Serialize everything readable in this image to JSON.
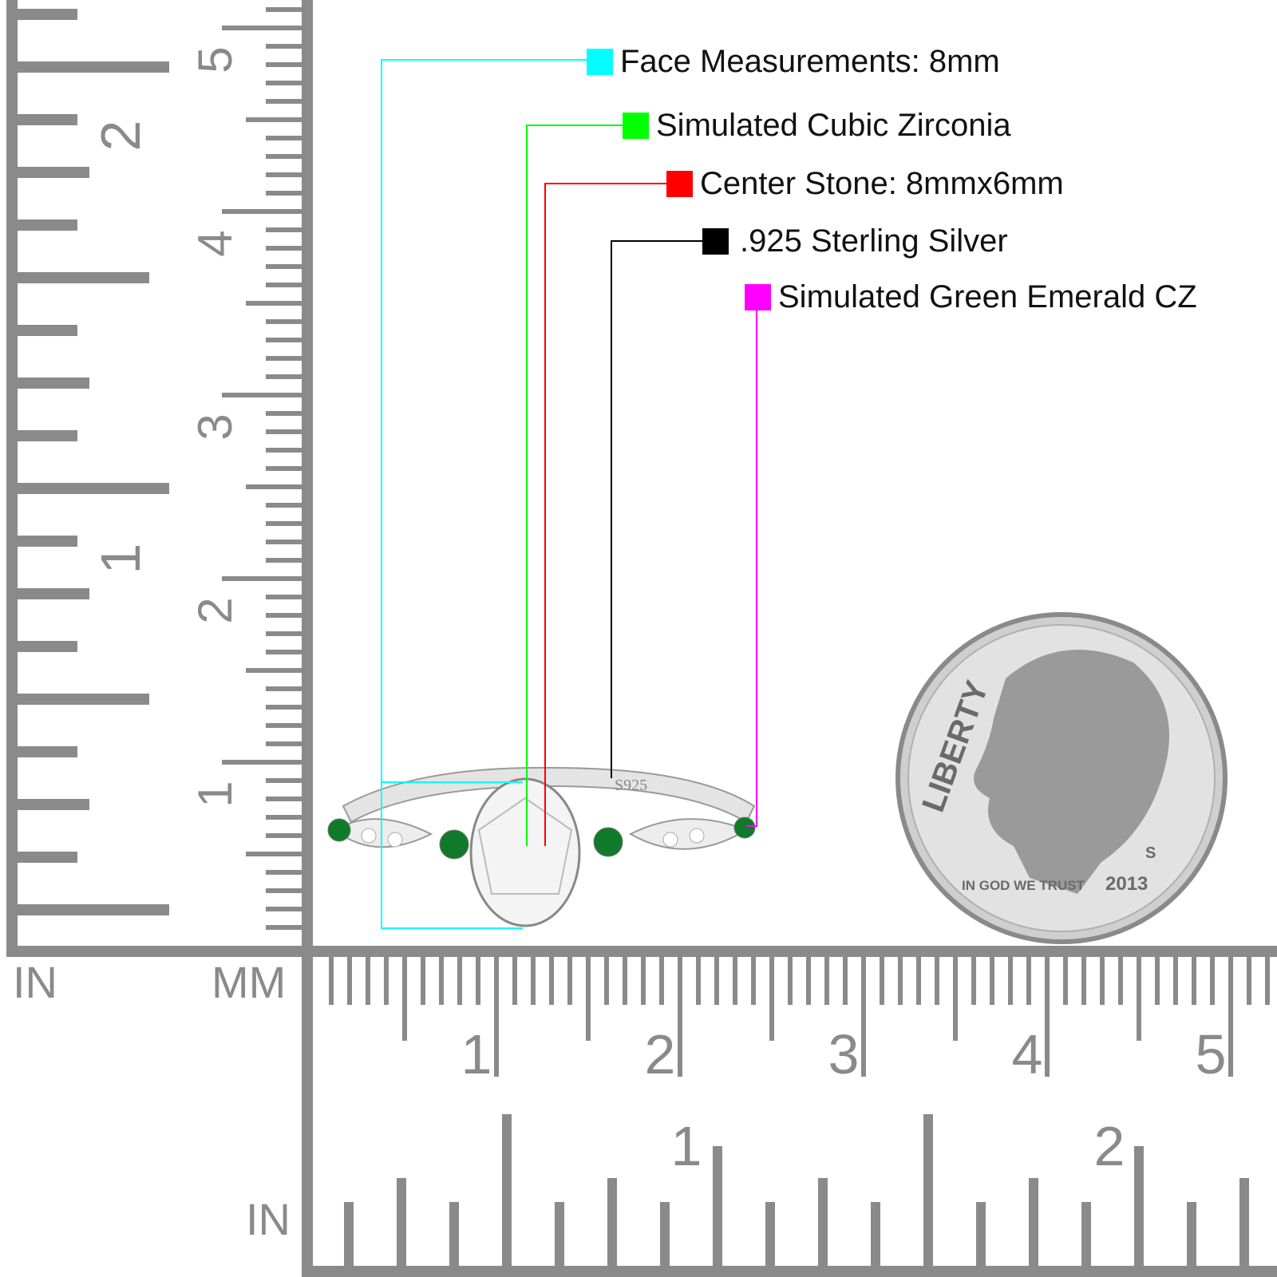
{
  "legend": [
    {
      "label": "Face Measurements: 8mm",
      "color": "#00ffff"
    },
    {
      "label": "Simulated Cubic Zirconia",
      "color": "#00ff00"
    },
    {
      "label": "Center Stone: 8mmx6mm",
      "color": "#ff0000"
    },
    {
      "label": ".925 Sterling Silver",
      "color": "#000000"
    },
    {
      "label": "Simulated Green Emerald CZ",
      "color": "#ff00ff"
    }
  ],
  "rulers": {
    "vertical_unit_in": "IN",
    "vertical_unit_mm": "MM",
    "horizontal_unit_in": "IN",
    "mm_labels": [
      "1",
      "2",
      "3",
      "4",
      "5"
    ],
    "in_labels": [
      "1",
      "2"
    ],
    "color": "#8a8a8a"
  },
  "ring": {
    "stamp": "S925",
    "emerald_color": "#0f7a2a"
  },
  "coin": {
    "legend_top": "LIBERTY",
    "motto": "IN GOD WE TRUST",
    "year": "2013",
    "mint_mark": "S"
  }
}
